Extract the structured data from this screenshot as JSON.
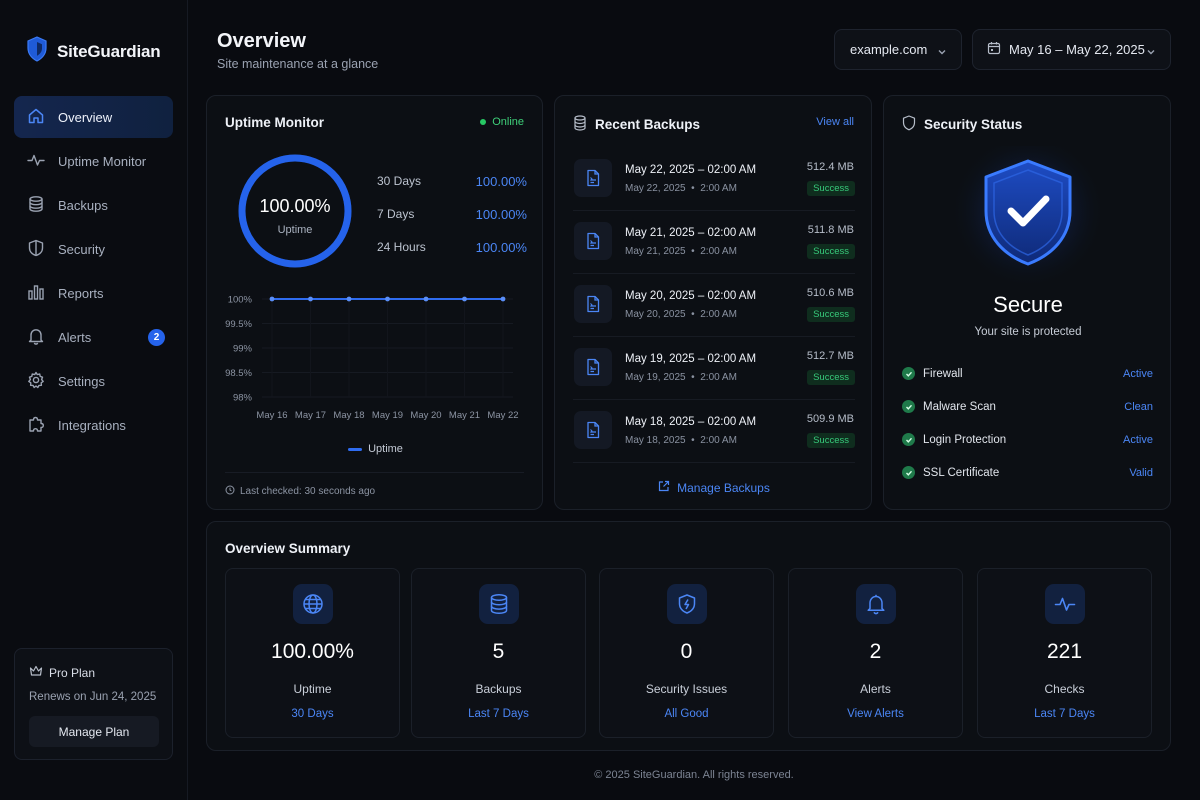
{
  "brand": {
    "name": "SiteGuardian"
  },
  "sidebar": {
    "items": [
      {
        "label": "Overview",
        "icon": "home-icon"
      },
      {
        "label": "Uptime Monitor",
        "icon": "pulse-icon"
      },
      {
        "label": "Backups",
        "icon": "database-icon"
      },
      {
        "label": "Security",
        "icon": "shield-icon"
      },
      {
        "label": "Reports",
        "icon": "bar-chart-icon"
      },
      {
        "label": "Alerts",
        "icon": "bell-icon",
        "badge": "2"
      },
      {
        "label": "Settings",
        "icon": "gear-icon"
      },
      {
        "label": "Integrations",
        "icon": "puzzle-icon"
      }
    ],
    "plan": {
      "title": "Pro Plan",
      "renews": "Renews on Jun 24, 2025",
      "button": "Manage Plan"
    }
  },
  "header": {
    "title": "Overview",
    "subtitle": "Site maintenance at a glance",
    "site": "example.com",
    "date_range": "May 16 – May 22, 2025"
  },
  "uptime": {
    "title": "Uptime Monitor",
    "status": "Online",
    "ring_value": "100.00%",
    "ring_label": "Uptime",
    "stats": [
      {
        "label": "30 Days",
        "value": "100.00%"
      },
      {
        "label": "7 Days",
        "value": "100.00%"
      },
      {
        "label": "24 Hours",
        "value": "100.00%"
      }
    ],
    "legend": "Uptime",
    "last_checked": "Last checked: 30 seconds ago"
  },
  "chart_data": {
    "type": "line",
    "x": [
      "May 16",
      "May 17",
      "May 18",
      "May 19",
      "May 20",
      "May 21",
      "May 22"
    ],
    "series": [
      {
        "name": "Uptime",
        "values": [
          100,
          100,
          100,
          100,
          100,
          100,
          100
        ]
      }
    ],
    "yticks": [
      "100%",
      "99.5%",
      "99%",
      "98.5%",
      "98%"
    ],
    "ylim": [
      98,
      100
    ],
    "grid": true,
    "legend_position": "bottom-center",
    "color": "#2f6cf0"
  },
  "backups": {
    "title": "Recent Backups",
    "view_all": "View all",
    "items": [
      {
        "title": "May 22, 2025 – 02:00 AM",
        "date": "May 22, 2025",
        "time": "2:00 AM",
        "size": "512.4 MB",
        "status": "Success"
      },
      {
        "title": "May 21, 2025 – 02:00 AM",
        "date": "May 21, 2025",
        "time": "2:00 AM",
        "size": "511.8 MB",
        "status": "Success"
      },
      {
        "title": "May 20, 2025 – 02:00 AM",
        "date": "May 20, 2025",
        "time": "2:00 AM",
        "size": "510.6 MB",
        "status": "Success"
      },
      {
        "title": "May 19, 2025 – 02:00 AM",
        "date": "May 19, 2025",
        "time": "2:00 AM",
        "size": "512.7 MB",
        "status": "Success"
      },
      {
        "title": "May 18, 2025 – 02:00 AM",
        "date": "May 18, 2025",
        "time": "2:00 AM",
        "size": "509.9 MB",
        "status": "Success"
      }
    ],
    "manage": "Manage Backups"
  },
  "security": {
    "title": "Security Status",
    "headline": "Secure",
    "subtitle": "Your site is protected",
    "checks": [
      {
        "label": "Firewall",
        "status": "Active"
      },
      {
        "label": "Malware Scan",
        "status": "Clean"
      },
      {
        "label": "Login Protection",
        "status": "Active"
      },
      {
        "label": "SSL Certificate",
        "status": "Valid"
      }
    ]
  },
  "summary": {
    "title": "Overview Summary",
    "tiles": [
      {
        "icon": "globe-icon",
        "value": "100.00%",
        "label": "Uptime",
        "link": "30 Days"
      },
      {
        "icon": "database-icon",
        "value": "5",
        "label": "Backups",
        "link": "Last 7 Days"
      },
      {
        "icon": "shield-bolt-icon",
        "value": "0",
        "label": "Security Issues",
        "link": "All Good"
      },
      {
        "icon": "bell-icon",
        "value": "2",
        "label": "Alerts",
        "link": "View Alerts"
      },
      {
        "icon": "pulse-icon",
        "value": "221",
        "label": "Checks",
        "link": "Last 7 Days"
      }
    ]
  },
  "footer": "© 2025 SiteGuardian. All rights reserved.",
  "colors": {
    "accent": "#2f6cf0",
    "success": "#37c97a",
    "background": "#090b10"
  }
}
